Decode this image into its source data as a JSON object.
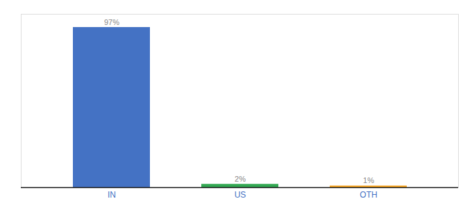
{
  "chart_data": {
    "type": "bar",
    "categories": [
      "IN",
      "US",
      "OTH"
    ],
    "values": [
      97,
      2,
      1
    ],
    "value_labels": [
      "97%",
      "2%",
      "1%"
    ],
    "colors": [
      "#4472C4",
      "#33A853",
      "#F9A825"
    ],
    "ylim": [
      0,
      105
    ],
    "data_labels": true,
    "tick_labels": "x",
    "grid": false
  }
}
